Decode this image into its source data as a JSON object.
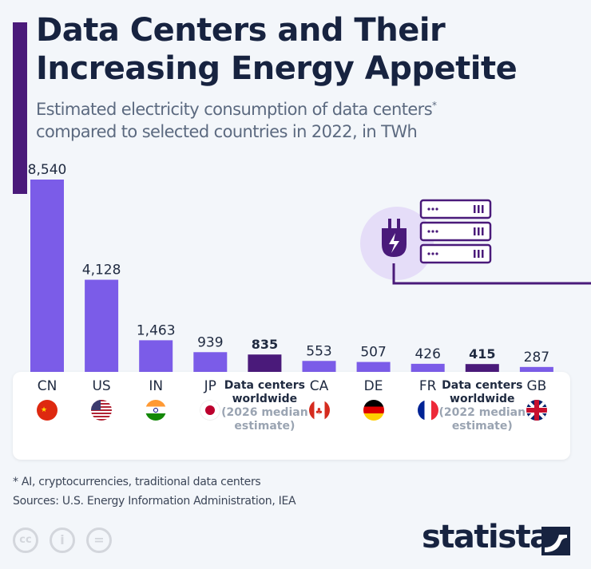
{
  "title_line1": "Data Centers and Their",
  "title_line2": "Increasing Energy Appetite",
  "subtitle_line1": "Estimated electricity consumption of data centers",
  "subtitle_asterisk": "*",
  "subtitle_line2": "compared to selected countries in 2022, in TWh",
  "colors": {
    "bar": "#7b5ce8",
    "highlight": "#4a1a7a",
    "accent": "#4a1a7a"
  },
  "chart_data": {
    "type": "bar",
    "categories": [
      "CN",
      "US",
      "IN",
      "JP",
      "Data centers worldwide (2026 median estimate)",
      "CA",
      "DE",
      "FR",
      "Data centers worldwide (2022 median estimate)",
      "GB"
    ],
    "values": [
      8540,
      4128,
      1463,
      939,
      835,
      553,
      507,
      426,
      415,
      287
    ],
    "value_labels": [
      "8,540",
      "4,128",
      "1,463",
      "939",
      "835",
      "553",
      "507",
      "426",
      "415",
      "287"
    ],
    "highlighted": [
      false,
      false,
      false,
      false,
      true,
      false,
      false,
      false,
      true,
      false
    ],
    "ylim": [
      0,
      8540
    ],
    "grid": false,
    "unit": "TWh"
  },
  "categories": [
    {
      "label": "CN",
      "flag": "china-flag-icon"
    },
    {
      "label": "US",
      "flag": "usa-flag-icon"
    },
    {
      "label": "IN",
      "flag": "india-flag-icon"
    },
    {
      "label": "JP",
      "flag": "japan-flag-icon"
    },
    {
      "label": "Data centers worldwide",
      "note": "(2026 median estimate)"
    },
    {
      "label": "CA",
      "flag": "canada-flag-icon"
    },
    {
      "label": "DE",
      "flag": "germany-flag-icon"
    },
    {
      "label": "FR",
      "flag": "france-flag-icon"
    },
    {
      "label": "Data centers worldwide",
      "note": "(2022 median estimate)"
    },
    {
      "label": "GB",
      "flag": "uk-flag-icon"
    }
  ],
  "footnote": "* AI, cryptocurrencies, traditional data centers",
  "sources": "Sources: U.S. Energy Information Administration, IEA",
  "license_icons": [
    "cc-icon",
    "attribution-icon",
    "no-derivatives-icon"
  ],
  "logo": "statista"
}
